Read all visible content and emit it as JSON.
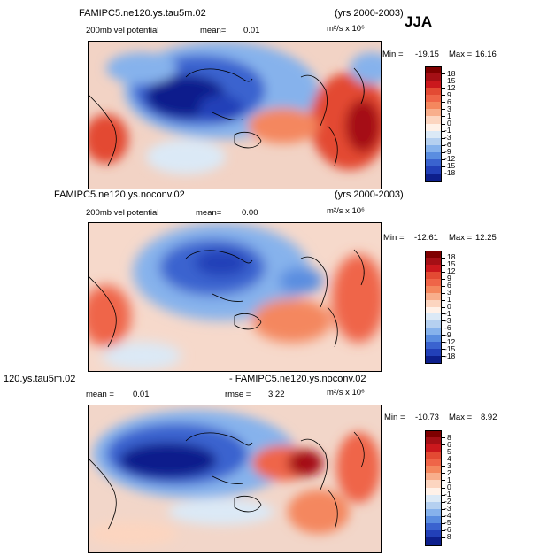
{
  "season": "JJA",
  "panels": [
    {
      "title": "FAMIPC5.ne120.ys.tau5m.02",
      "years": "(yrs 2000-2003)",
      "variable": "200mb vel potential",
      "mean_label": "mean=",
      "mean_value": "0.01",
      "units": "m²/s x 10⁶",
      "min_label": "Min =",
      "min_value": "-19.15",
      "max_label": "Max =",
      "max_value": "16.16",
      "colorbar_ticks": [
        "18",
        "15",
        "12",
        "9",
        "6",
        "3",
        "1",
        "0",
        "-1",
        "-3",
        "-6",
        "-9",
        "-12",
        "-15",
        "-18"
      ],
      "colors": [
        "#7f0000",
        "#a50f15",
        "#cb181d",
        "#e34a33",
        "#ef6548",
        "#f4875e",
        "#f8ae8c",
        "#fcd5c0",
        "#fff1e8",
        "#dbe9f6",
        "#b5d0f0",
        "#86b2ec",
        "#5a8de0",
        "#3a63cf",
        "#2240b8",
        "#0d1f8c"
      ]
    },
    {
      "title": "FAMIPC5.ne120.ys.noconv.02",
      "years": "(yrs 2000-2003)",
      "variable": "200mb vel potential",
      "mean_label": "mean=",
      "mean_value": "0.00",
      "units": "m²/s x 10⁶",
      "min_label": "Min =",
      "min_value": "-12.61",
      "max_label": "Max =",
      "max_value": "12.25",
      "colorbar_ticks": [
        "18",
        "15",
        "12",
        "9",
        "6",
        "3",
        "1",
        "0",
        "-1",
        "-3",
        "-6",
        "-9",
        "-12",
        "-15",
        "-18"
      ],
      "colors": [
        "#7f0000",
        "#a50f15",
        "#cb181d",
        "#e34a33",
        "#ef6548",
        "#f4875e",
        "#f8ae8c",
        "#fcd5c0",
        "#fff1e8",
        "#dbe9f6",
        "#b5d0f0",
        "#86b2ec",
        "#5a8de0",
        "#3a63cf",
        "#2240b8",
        "#0d1f8c"
      ]
    },
    {
      "title": "120.ys.tau5m.02",
      "subtitle": "- FAMIPC5.ne120.ys.noconv.02",
      "mean_label": "mean =",
      "mean_value": "0.01",
      "rmse_label": "rmse =",
      "rmse_value": "3.22",
      "units": "m²/s x 10⁶",
      "min_label": "Min =",
      "min_value": "-10.73",
      "max_label": "Max =",
      "max_value": "8.92",
      "colorbar_ticks": [
        "8",
        "6",
        "5",
        "4",
        "3",
        "2",
        "1",
        "0",
        "-1",
        "-2",
        "-3",
        "-4",
        "-5",
        "-6",
        "-8"
      ],
      "colors": [
        "#7f0000",
        "#a50f15",
        "#cb181d",
        "#e34a33",
        "#ef6548",
        "#f4875e",
        "#f8ae8c",
        "#fcd5c0",
        "#fff1e8",
        "#dbe9f6",
        "#b5d0f0",
        "#86b2ec",
        "#5a8de0",
        "#3a63cf",
        "#2240b8",
        "#0d1f8c"
      ]
    }
  ],
  "chart_data": [
    {
      "type": "heatmap",
      "title": "FAMIPC5.ne120.ys.tau5m.02",
      "subtitle": "200mb vel potential, JJA (yrs 2000-2003)",
      "units": "m2/s x 10^6",
      "mean": 0.01,
      "min": -19.15,
      "max": 16.16,
      "levels": [
        -18,
        -15,
        -12,
        -9,
        -6,
        -3,
        -1,
        0,
        1,
        3,
        6,
        9,
        12,
        15,
        18
      ],
      "pattern": "strong negative over Asian monsoon / western Pacific, positive over Atlantic, Africa and eastern Pacific"
    },
    {
      "type": "heatmap",
      "title": "FAMIPC5.ne120.ys.noconv.02",
      "subtitle": "200mb vel potential, JJA (yrs 2000-2003)",
      "units": "m2/s x 10^6",
      "mean": 0.0,
      "min": -12.61,
      "max": 12.25,
      "levels": [
        -18,
        -15,
        -12,
        -9,
        -6,
        -3,
        -1,
        0,
        1,
        3,
        6,
        9,
        12,
        15,
        18
      ]
    },
    {
      "type": "heatmap",
      "title": "120.ys.tau5m.02 - FAMIPC5.ne120.ys.noconv.02",
      "units": "m2/s x 10^6",
      "mean": 0.01,
      "rmse": 3.22,
      "min": -10.73,
      "max": 8.92,
      "levels": [
        -8,
        -6,
        -5,
        -4,
        -3,
        -2,
        -1,
        0,
        1,
        2,
        3,
        4,
        5,
        6,
        8
      ]
    }
  ]
}
